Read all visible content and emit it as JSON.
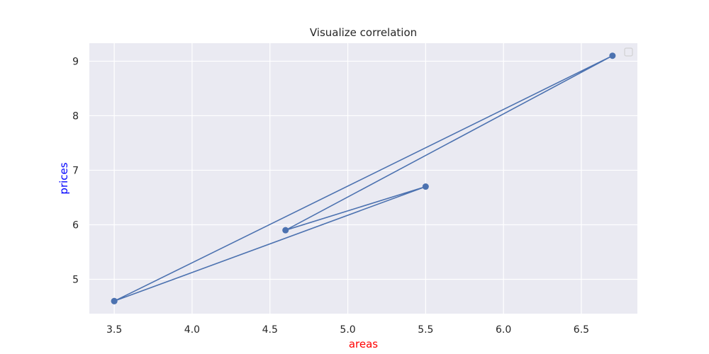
{
  "chart_data": {
    "type": "line",
    "title": "Visualize correlation",
    "xlabel": "areas",
    "ylabel": "prices",
    "xlabel_color": "#ff0000",
    "ylabel_color": "#0000ff",
    "background": "#eaeaf2",
    "grid": true,
    "grid_color": "#ffffff",
    "line_color": "#4c72b0",
    "marker": "circle",
    "legend": {
      "placement": "top-right",
      "entries": []
    },
    "xlim": [
      3.34,
      6.86
    ],
    "ylim": [
      4.37,
      9.33
    ],
    "xticks": [
      {
        "value": 3.5,
        "label": "3.5"
      },
      {
        "value": 4.0,
        "label": "4.0"
      },
      {
        "value": 4.5,
        "label": "4.5"
      },
      {
        "value": 5.0,
        "label": "5.0"
      },
      {
        "value": 5.5,
        "label": "5.5"
      },
      {
        "value": 6.0,
        "label": "6.0"
      },
      {
        "value": 6.5,
        "label": "6.5"
      }
    ],
    "yticks": [
      {
        "value": 5,
        "label": "5"
      },
      {
        "value": 6,
        "label": "6"
      },
      {
        "value": 7,
        "label": "7"
      },
      {
        "value": 8,
        "label": "8"
      },
      {
        "value": 9,
        "label": "9"
      }
    ],
    "series": [
      {
        "points": [
          {
            "x": 3.5,
            "y": 4.6
          },
          {
            "x": 6.7,
            "y": 9.1
          },
          {
            "x": 4.6,
            "y": 5.9
          },
          {
            "x": 5.5,
            "y": 6.7
          },
          {
            "x": 3.5,
            "y": 4.6
          }
        ]
      }
    ]
  }
}
